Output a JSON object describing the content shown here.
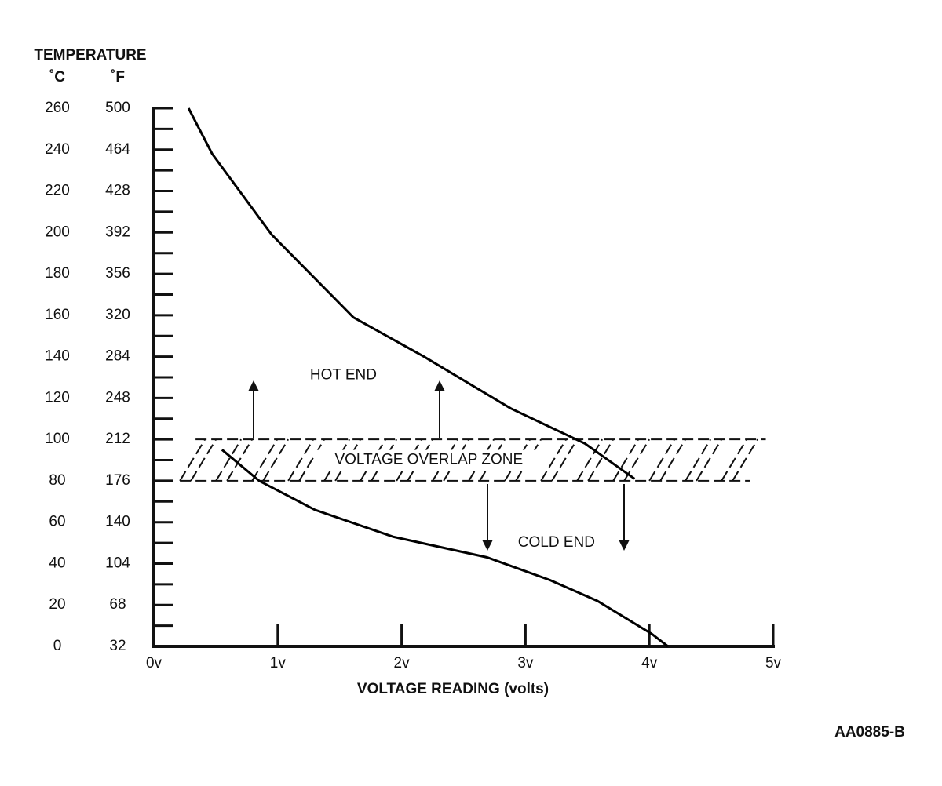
{
  "chart_data": {
    "type": "line",
    "y_title": "TEMPERATURE",
    "y_unit": "˚C",
    "y2_unit": "˚F",
    "x_title": "VOLTAGE READING (volts)",
    "figure_id": "AA0885-B",
    "xlim": [
      0,
      5
    ],
    "xticks": [
      {
        "value": 0,
        "label": "0v"
      },
      {
        "value": 1,
        "label": "1v"
      },
      {
        "value": 2,
        "label": "2v"
      },
      {
        "value": 3,
        "label": "3v"
      },
      {
        "value": 4,
        "label": "4v"
      },
      {
        "value": 5,
        "label": "5v"
      }
    ],
    "ylim": [
      0,
      260
    ],
    "yticks": [
      0,
      20,
      40,
      60,
      80,
      100,
      120,
      140,
      160,
      180,
      200,
      220,
      240,
      260
    ],
    "yminorticks": [
      10,
      30,
      50,
      70,
      90,
      110,
      130,
      150,
      170,
      190,
      210,
      230,
      250
    ],
    "y2lim": [
      32,
      500
    ],
    "y2ticks": [
      32,
      68,
      104,
      140,
      176,
      212,
      248,
      284,
      320,
      356,
      392,
      428,
      464,
      500
    ],
    "series": [
      {
        "color": "#000000",
        "x": [
          0.28,
          0.47,
          0.95,
          1.61,
          2.18,
          2.88,
          3.48,
          3.88
        ],
        "values": [
          260,
          238,
          199,
          159,
          140,
          115,
          98,
          81
        ]
      },
      {
        "color": "#000000",
        "x": [
          0.55,
          0.85,
          1.3,
          1.93,
          2.69,
          3.2,
          3.58,
          4.02,
          4.15
        ],
        "values": [
          95,
          80,
          66,
          53,
          43,
          32,
          22,
          6,
          0
        ]
      }
    ],
    "overlap_zone": {
      "label": "VOLTAGE OVERLAP ZONE",
      "ylim": [
        80,
        100
      ],
      "xlim": [
        0.21,
        4.94
      ]
    },
    "annotations": [
      {
        "text": "HOT END",
        "x": 1.53,
        "y": 131
      },
      {
        "text": "COLD END",
        "x": 3.25,
        "y": 50
      }
    ]
  }
}
